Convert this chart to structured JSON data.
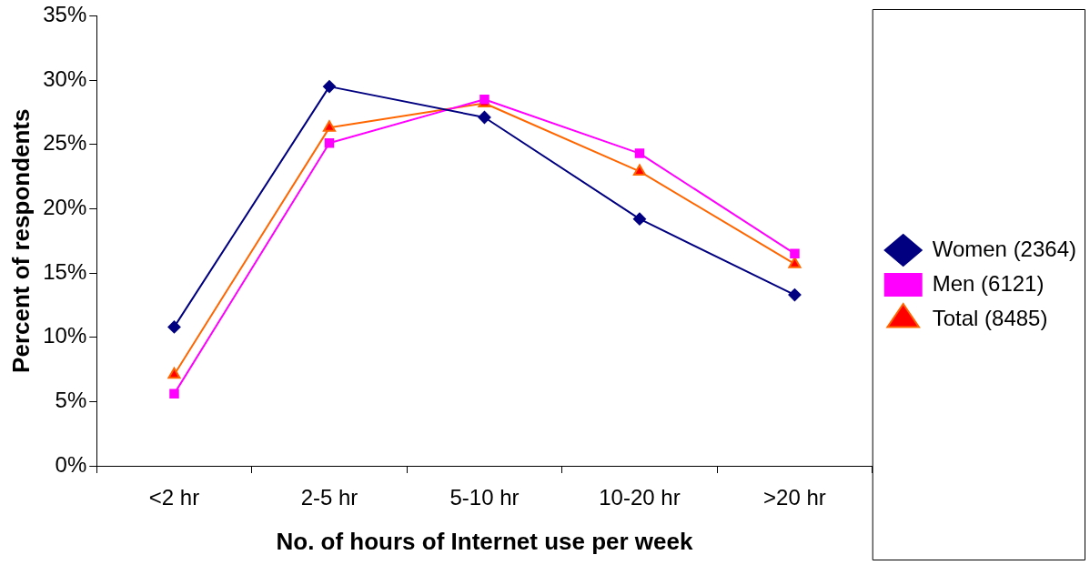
{
  "chart_data": {
    "type": "line",
    "xlabel": "No. of hours of Internet use per week",
    "ylabel": "Percent of respondents",
    "categories": [
      "<2 hr",
      "2-5 hr",
      "5-10 hr",
      "10-20 hr",
      ">20 hr"
    ],
    "series": [
      {
        "name": "Women (2364)",
        "color": "#000080",
        "marker": "diamond",
        "values": [
          10.8,
          29.5,
          27.1,
          19.2,
          13.3
        ]
      },
      {
        "name": "Men (6121)",
        "color": "#ff00ff",
        "marker": "square",
        "values": [
          5.6,
          25.1,
          28.5,
          24.3,
          16.5
        ]
      },
      {
        "name": "Total (8485)",
        "color": "#ff6600",
        "marker": "triangle",
        "values": [
          7.1,
          26.3,
          28.2,
          22.9,
          15.7
        ]
      }
    ],
    "ylim": [
      0,
      35
    ],
    "yticks": [
      {
        "value": 0,
        "label": "0%"
      },
      {
        "value": 5,
        "label": "5%"
      },
      {
        "value": 10,
        "label": "10%"
      },
      {
        "value": 15,
        "label": "15%"
      },
      {
        "value": 20,
        "label": "20%"
      },
      {
        "value": 25,
        "label": "25%"
      },
      {
        "value": 30,
        "label": "30%"
      },
      {
        "value": 35,
        "label": "35%"
      }
    ],
    "grid": false,
    "legend": "right",
    "line_style": "solid"
  }
}
